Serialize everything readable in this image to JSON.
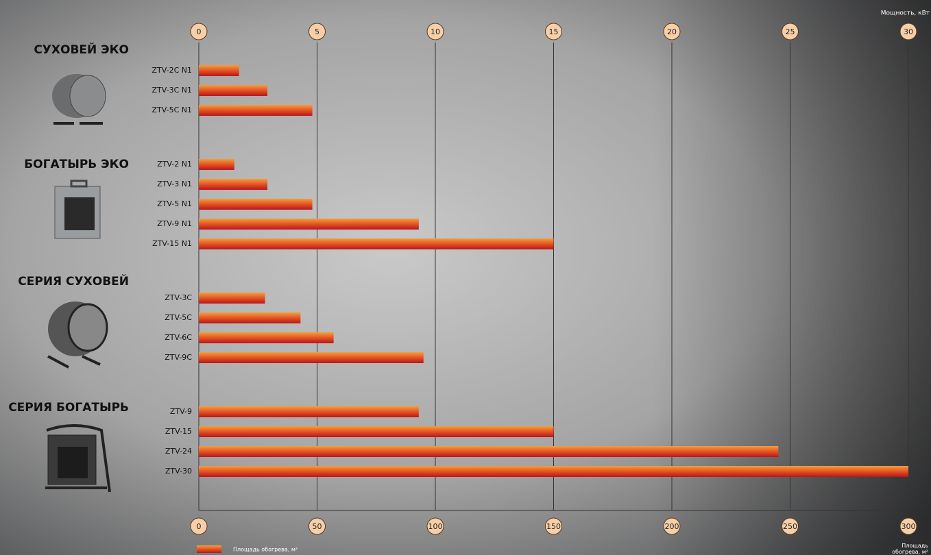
{
  "chart_data": {
    "type": "bar",
    "orientation": "horizontal",
    "series_name": "Площадь обогрева, м²",
    "x_label": "Площадь обогрева, м²",
    "x2_label": "Мощность, кВт",
    "xlim": [
      0,
      300
    ],
    "xticks": [
      0,
      50,
      100,
      150,
      200,
      250,
      300
    ],
    "x2lim": [
      0,
      30
    ],
    "x2ticks": [
      0,
      5,
      10,
      15,
      20,
      25,
      30
    ],
    "grid": true,
    "groups": [
      {
        "label": "СУХОВЕЙ ЭКО",
        "categories": [
          "ZTV-2C N1",
          "ZTV-3C N1",
          "ZTV-5C N1"
        ],
        "values": [
          17,
          29,
          48
        ]
      },
      {
        "label": "БОГАТЫРЬ ЭКО",
        "categories": [
          "ZTV-2 N1",
          "ZTV-3 N1",
          "ZTV-5 N1",
          "ZTV-9 N1",
          "ZTV-15 N1"
        ],
        "values": [
          15,
          29,
          48,
          93,
          150
        ]
      },
      {
        "label": "СЕРИЯ СУХОВЕЙ",
        "categories": [
          "ZTV-3C",
          "ZTV-5C",
          "ZTV-6C",
          "ZTV-9C"
        ],
        "values": [
          28,
          43,
          57,
          95
        ]
      },
      {
        "label": "СЕРИЯ БОГАТЫРЬ",
        "categories": [
          "ZTV-9",
          "ZTV-15",
          "ZTV-24",
          "ZTV-30"
        ],
        "values": [
          93,
          150,
          245,
          300
        ]
      }
    ]
  }
}
